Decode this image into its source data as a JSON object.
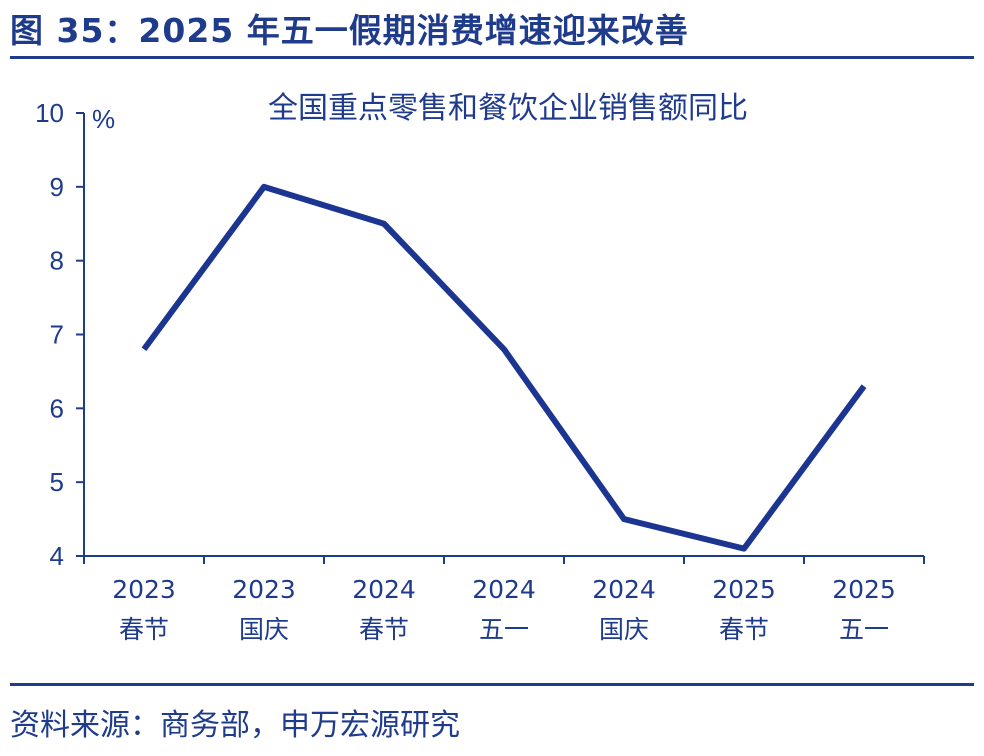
{
  "figure": {
    "title": "图 35：2025 年五一假期消费增速迎来改善",
    "source": "资料来源：商务部，申万宏源研究"
  },
  "chart_data": {
    "type": "line",
    "title": "全国重点零售和餐饮企业销售额同比",
    "ylabel": "%",
    "xlabel": "",
    "ylim": [
      4,
      10
    ],
    "yticks": [
      4,
      5,
      6,
      7,
      8,
      9,
      10
    ],
    "categories": [
      [
        "2023",
        "春节"
      ],
      [
        "2023",
        "国庆"
      ],
      [
        "2024",
        "春节"
      ],
      [
        "2024",
        "五一"
      ],
      [
        "2024",
        "国庆"
      ],
      [
        "2025",
        "春节"
      ],
      [
        "2025",
        "五一"
      ]
    ],
    "series": [
      {
        "values": [
          6.8,
          9.0,
          8.5,
          6.8,
          4.5,
          4.1,
          6.3
        ]
      }
    ],
    "grid": false,
    "legend": "none",
    "line_color": "#1b3591",
    "axis_color": "#1f3b8c"
  }
}
